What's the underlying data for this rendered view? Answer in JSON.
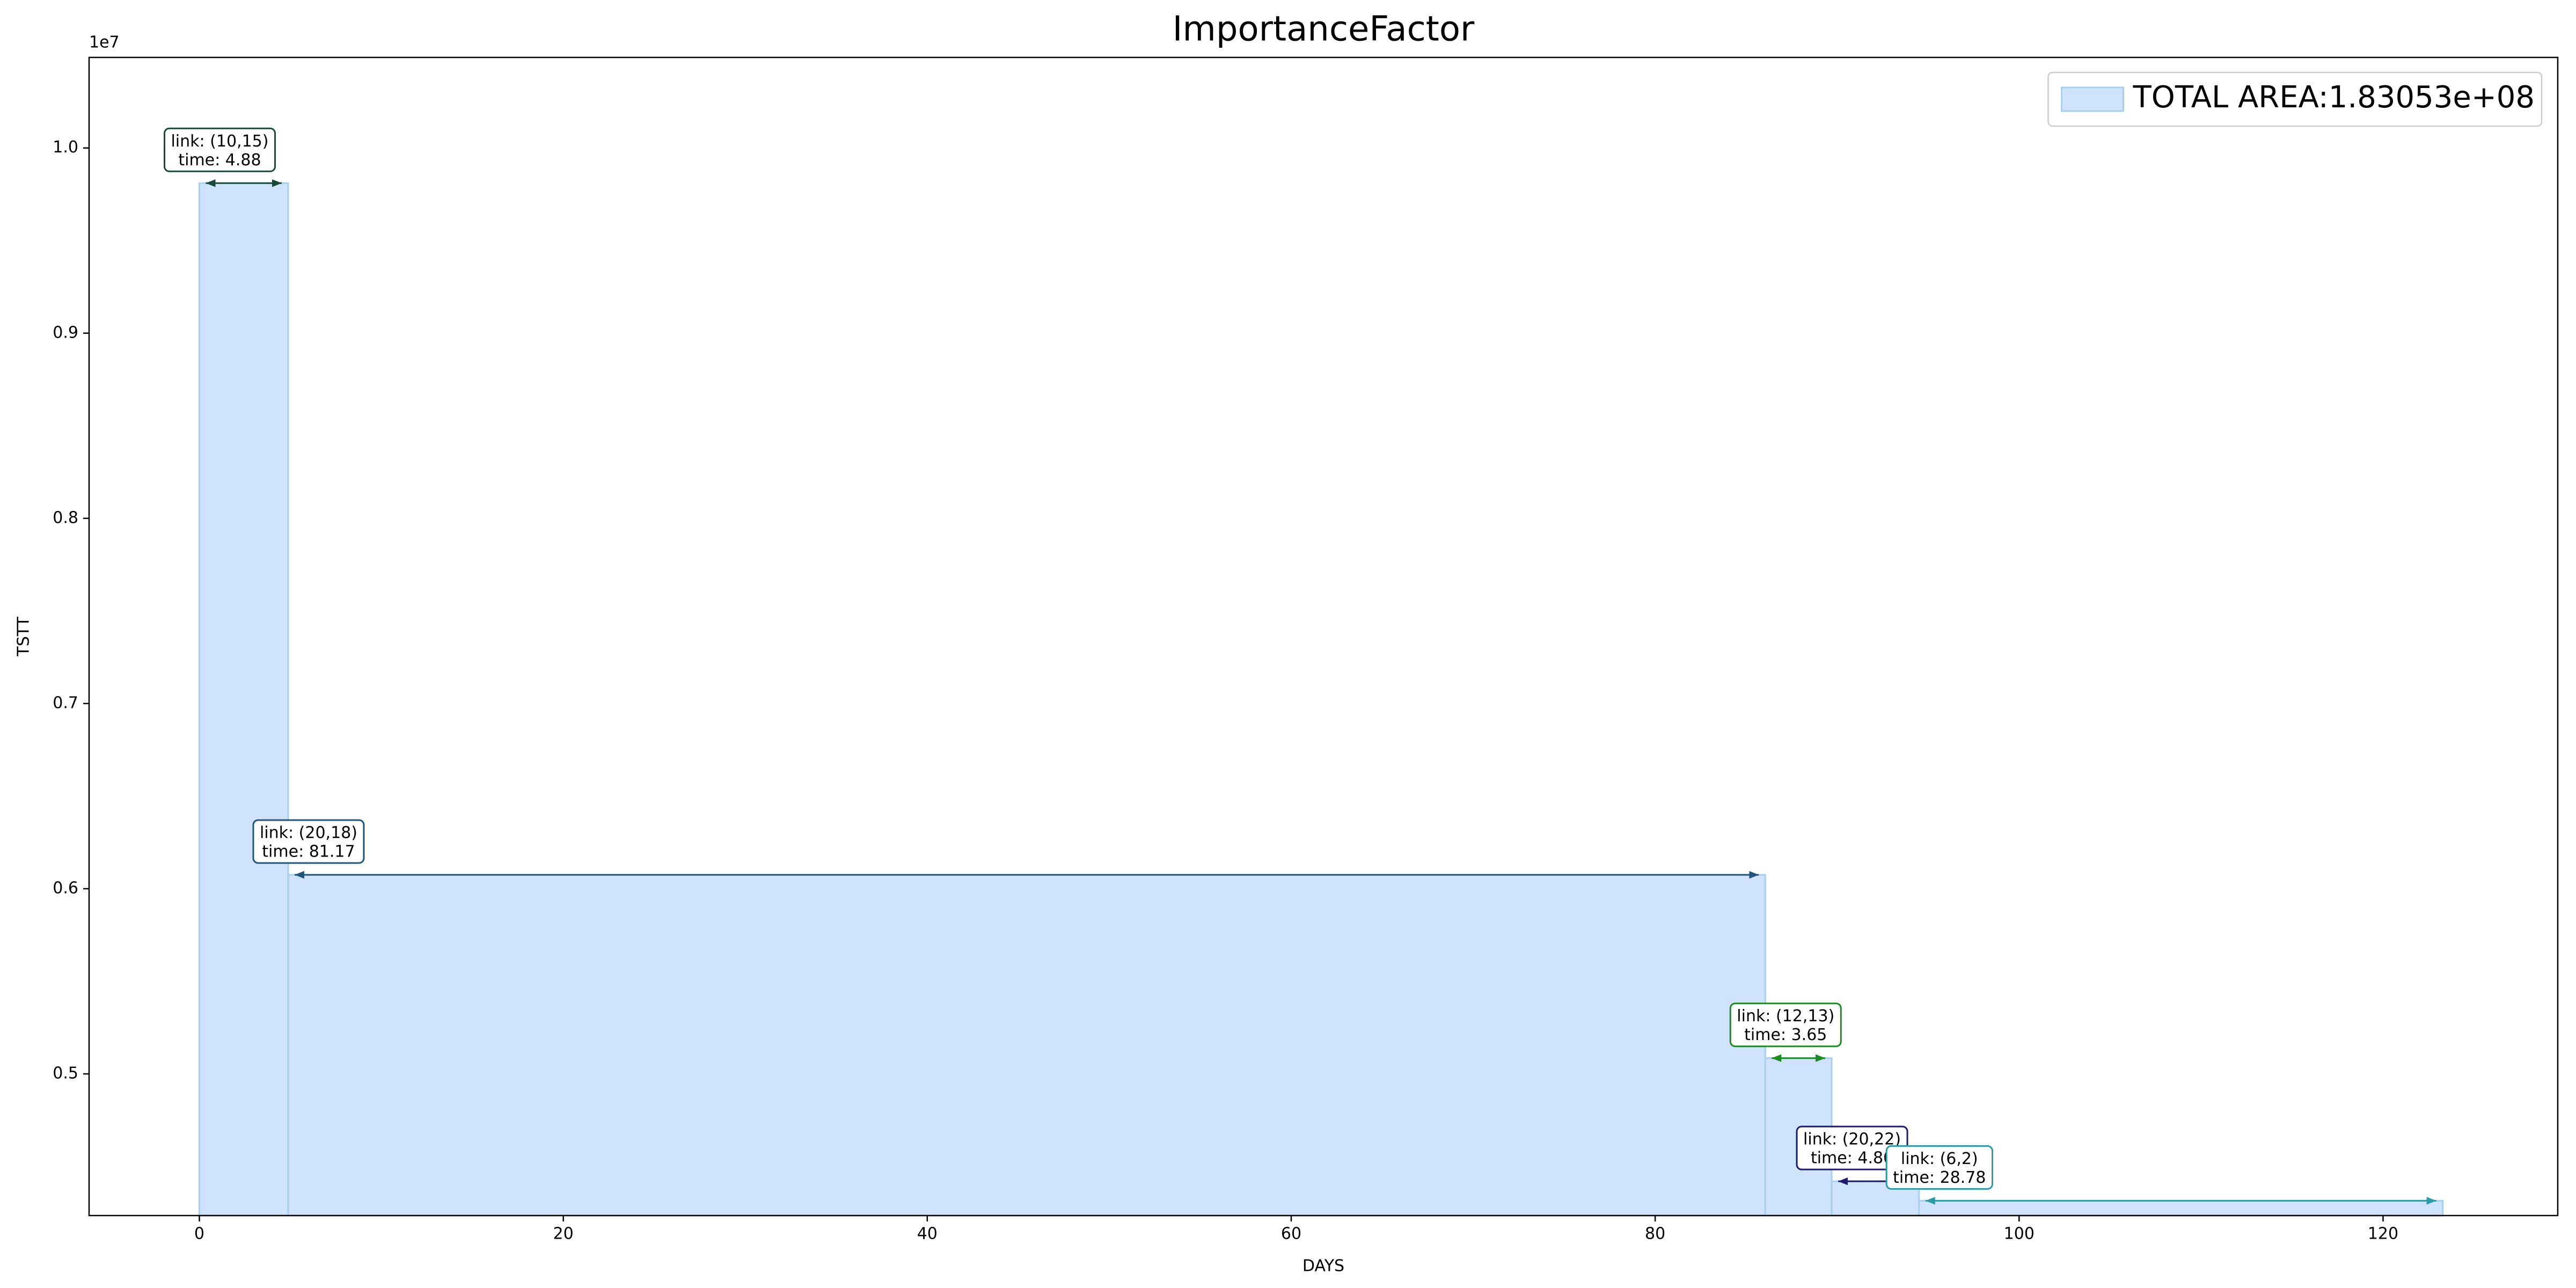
{
  "chart_data": {
    "type": "step_area",
    "title": "ImportanceFactor",
    "x_label": "DAYS",
    "y_label": "TSTT",
    "y_offset_label": "1e7",
    "legend_label": "TOTAL AREA:1.83053e+08",
    "legend_position": "upper right",
    "color": "#cfe4fc",
    "edge_color": "#a9cff0",
    "x_start": [
      0,
      4.88,
      86.05,
      89.7,
      94.5
    ],
    "x_end": [
      4.88,
      86.05,
      89.7,
      94.5,
      123.28
    ],
    "values": [
      9810000,
      6075000,
      5085000,
      4420000,
      4315000
    ],
    "link_labels": [
      "link: (10,15)",
      "link: (20,18)",
      "link: (12,13)",
      "link: (20,22)",
      "link: (6,2)"
    ],
    "time_labels": [
      "time: 4.88",
      "time: 81.17",
      "time: 3.65",
      "time: 4.80",
      "time: 28.78"
    ],
    "annotation_colors": [
      "#184a38",
      "#1f557a",
      "#1e8a24",
      "#1c1c6e",
      "#2a9aa8"
    ],
    "xlim": [
      -6.06,
      129.6
    ],
    "ylim": [
      4235000,
      10489000
    ],
    "xticks": [
      0,
      20,
      40,
      60,
      80,
      100,
      120
    ],
    "yticks": [
      {
        "value": 5000000,
        "label": "0.5"
      },
      {
        "value": 6000000,
        "label": "0.6"
      },
      {
        "value": 7000000,
        "label": "0.7"
      },
      {
        "value": 8000000,
        "label": "0.8"
      },
      {
        "value": 9000000,
        "label": "0.9"
      },
      {
        "value": 10000000,
        "label": "1.0"
      }
    ]
  }
}
